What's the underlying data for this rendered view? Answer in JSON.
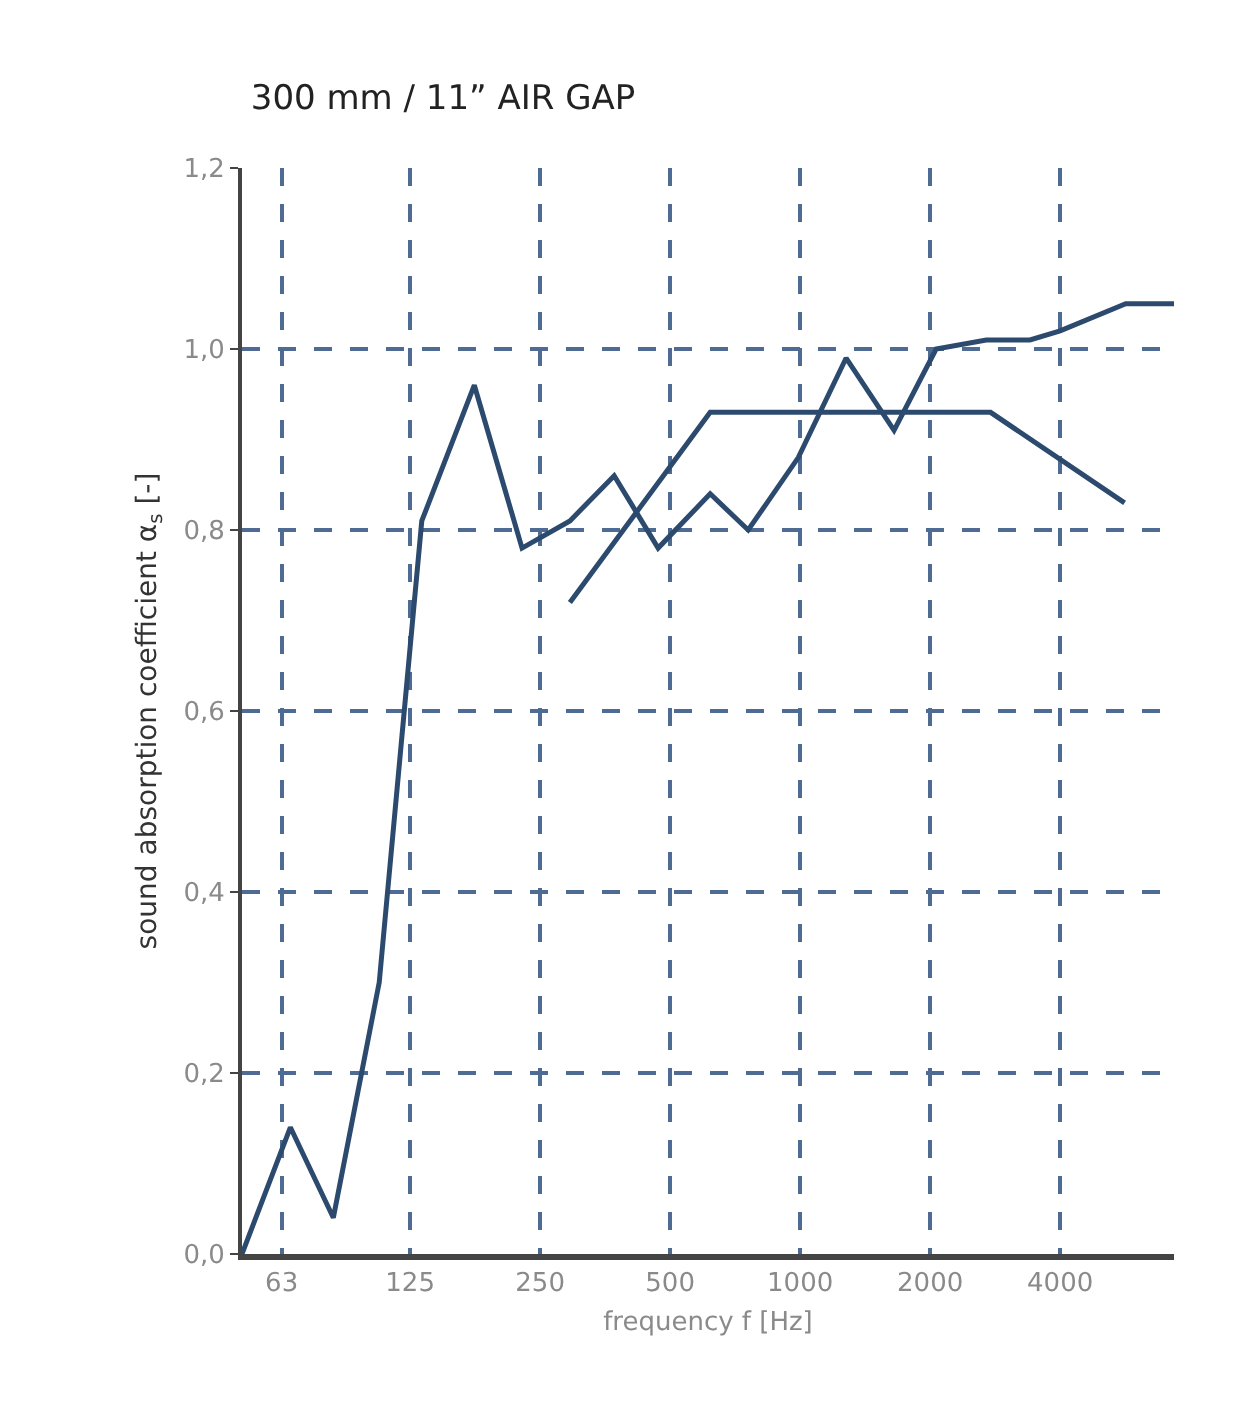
{
  "chart_data": {
    "type": "line",
    "title": "300 mm / 11” AIR GAP",
    "xlabel": "frequency f [Hz]",
    "ylabel": "sound absorption coefficient α$_{s}$ [-]",
    "log": "x",
    "xlim": [
      51,
      7340
    ],
    "xticks": [
      63,
      125,
      250,
      500,
      1000,
      2000,
      4000
    ],
    "ylim": [
      0,
      1.2
    ],
    "yticks": [
      {
        "value": 0,
        "label": "0,0"
      },
      {
        "value": 0.2,
        "label": "0,2"
      },
      {
        "value": 0.4,
        "label": "0,4"
      },
      {
        "value": 0.6,
        "label": "0,6"
      },
      {
        "value": 0.8,
        "label": "0,8"
      },
      {
        "value": 1.0,
        "label": "1,0"
      },
      {
        "value": 1.2,
        "label": "1,2"
      }
    ],
    "grid": true,
    "line_style": "solid",
    "marker": "none",
    "series": [
      {
        "color": "#2c4a6e",
        "x": [
          51,
          66,
          83,
          106,
          133,
          176,
          227,
          293,
          371,
          469,
          619,
          758,
          990,
          1278,
          1650,
          2065,
          2698,
          3406,
          4000,
          5675,
          7340
        ],
        "values": [
          0.0,
          0.14,
          0.04,
          0.3,
          0.81,
          0.96,
          0.78,
          0.81,
          0.86,
          0.78,
          0.84,
          0.8,
          0.88,
          0.99,
          0.91,
          1.0,
          1.01,
          1.01,
          1.02,
          1.05,
          1.05
        ]
      },
      {
        "color": "#2c4a6e",
        "x": [
          293,
          619,
          2760,
          5640
        ],
        "values": [
          0.72,
          0.93,
          0.93,
          0.83
        ]
      }
    ]
  }
}
